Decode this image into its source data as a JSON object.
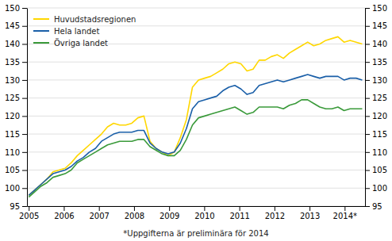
{
  "chart_data": {
    "type": "line",
    "annotations": [
      "*Uppgifterna är preliminära för 2014"
    ],
    "x": [
      2005,
      2005.1727,
      2005.3455,
      2005.5182,
      2005.6909,
      2005.8636,
      2006.0364,
      2006.2091,
      2006.3818,
      2006.5545,
      2006.7273,
      2006.9,
      2007.0727,
      2007.2455,
      2007.4182,
      2007.5909,
      2007.7636,
      2007.9364,
      2008.1091,
      2008.2818,
      2008.4545,
      2008.6273,
      2008.8,
      2008.9727,
      2009.1455,
      2009.3182,
      2009.4909,
      2009.6636,
      2009.8364,
      2010.0091,
      2010.1818,
      2010.3545,
      2010.5273,
      2010.7,
      2010.8727,
      2011.0455,
      2011.2182,
      2011.3909,
      2011.5636,
      2011.7364,
      2011.9091,
      2012.0818,
      2012.2545,
      2012.4273,
      2012.6,
      2012.7727,
      2012.9455,
      2013.1182,
      2013.2909,
      2013.4636,
      2013.6364,
      2013.8091,
      2013.9818,
      2014.1545,
      2014.3273,
      2014.5
    ],
    "series": [
      {
        "name": "Huvudstadsregionen",
        "color": "#FFD700",
        "values": [
          98.0,
          99.5,
          101.0,
          102.5,
          104.5,
          105.0,
          105.5,
          107.0,
          109.0,
          110.5,
          112.0,
          113.5,
          115.0,
          117.0,
          118.0,
          117.5,
          117.5,
          118.0,
          119.5,
          120.0,
          113.0,
          111.0,
          110.0,
          109.0,
          110.0,
          114.0,
          119.0,
          128.0,
          130.0,
          130.5,
          131.0,
          132.0,
          133.0,
          134.5,
          135.0,
          134.5,
          132.5,
          133.0,
          135.5,
          135.5,
          136.5,
          137.0,
          136.0,
          137.5,
          138.5,
          139.5,
          140.5,
          139.5,
          140.0,
          141.0,
          141.5,
          142.0,
          140.5,
          141.0,
          140.5,
          140.0
        ]
      },
      {
        "name": "Hela landet",
        "color": "#1a5fa8",
        "values": [
          98.0,
          99.5,
          101.0,
          102.5,
          104.0,
          104.5,
          105.0,
          106.0,
          107.5,
          108.5,
          110.0,
          111.0,
          113.0,
          114.0,
          115.0,
          115.5,
          115.5,
          115.5,
          116.0,
          116.0,
          112.5,
          111.0,
          110.0,
          109.5,
          110.0,
          112.5,
          116.5,
          122.0,
          124.0,
          124.5,
          125.0,
          125.5,
          127.0,
          128.0,
          128.5,
          127.5,
          126.0,
          126.5,
          128.5,
          129.0,
          129.5,
          130.0,
          129.5,
          130.0,
          130.5,
          131.0,
          131.5,
          131.0,
          130.5,
          131.0,
          131.0,
          131.0,
          130.0,
          130.5,
          130.5,
          130.0
        ]
      },
      {
        "name": "Övriga landet",
        "color": "#3a9a3a",
        "values": [
          97.5,
          99.0,
          100.5,
          101.5,
          103.0,
          103.5,
          104.0,
          105.0,
          107.0,
          108.0,
          109.0,
          110.0,
          111.0,
          112.0,
          112.5,
          113.0,
          113.0,
          113.0,
          113.5,
          113.5,
          111.5,
          110.5,
          109.5,
          109.0,
          109.0,
          110.5,
          113.5,
          117.5,
          119.5,
          120.0,
          120.5,
          121.0,
          121.5,
          122.0,
          122.5,
          121.5,
          120.5,
          121.0,
          122.5,
          122.5,
          122.5,
          122.5,
          122.0,
          123.0,
          123.5,
          124.5,
          124.5,
          123.5,
          122.5,
          122.0,
          122.0,
          122.5,
          121.5,
          122.0,
          122.0,
          122.0
        ]
      }
    ],
    "xlim": [
      2004.95,
      2014.58
    ],
    "xticks": [
      2005,
      2006,
      2007,
      2008,
      2009,
      2010,
      2011,
      2012,
      2013,
      {
        "value": 2014,
        "label": "2014*"
      }
    ],
    "ylim": [
      95,
      150
    ],
    "yticks": [
      95,
      100,
      105,
      110,
      115,
      120,
      125,
      130,
      135,
      140,
      145,
      150
    ],
    "y2lim": [
      95,
      150
    ],
    "y2ticks": [
      95,
      100,
      105,
      110,
      115,
      120,
      125,
      130,
      135,
      140,
      145,
      150
    ],
    "grid": true,
    "legend": "upper left"
  }
}
